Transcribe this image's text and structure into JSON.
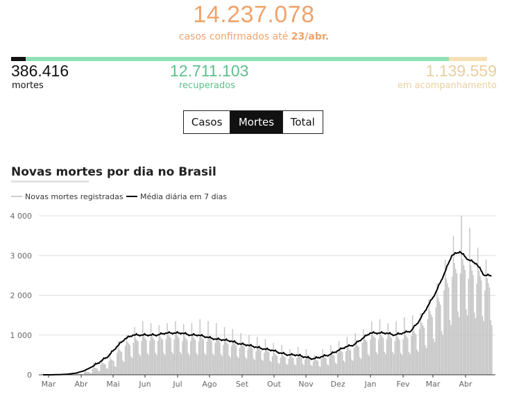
{
  "summary": {
    "confirmed": "14.237.078",
    "confirmed_caption_prefix": "casos confirmados até",
    "confirmed_caption_date": "23/abr.",
    "deaths": "386.416",
    "deaths_label": "mortes",
    "recovered": "12.711.103",
    "recovered_label": "recuperados",
    "monitoring": "1.139.559",
    "monitoring_label": "em acompanhamento"
  },
  "colors": {
    "confirmed": "#f0a36b",
    "deaths": "#111111",
    "recovered": "#5cc08b",
    "monitoring": "#e8cfa0",
    "recovered_bar": "#8ee0b4",
    "monitoring_bar": "#f7e0b5",
    "bars": "#c4c4c4",
    "line": "#000000"
  },
  "toggle": {
    "options": [
      "Casos",
      "Mortes",
      "Total"
    ],
    "selected": "Mortes"
  },
  "chart_data": {
    "type": "bar",
    "title": "Novas mortes por dia no Brasil",
    "xlabel": "",
    "ylabel": "",
    "ylim": [
      0,
      4000
    ],
    "yticks": [
      0,
      1000,
      2000,
      3000,
      4000
    ],
    "ytick_labels": [
      "0",
      "1 000",
      "2 000",
      "3 000",
      "4 000"
    ],
    "month_labels": [
      "Mar",
      "Abr",
      "Mai",
      "Jun",
      "Jul",
      "Ago",
      "Set",
      "Out",
      "Nov",
      "Dez",
      "Jan",
      "Fev",
      "Mar",
      "Abr"
    ],
    "grid": true,
    "legend_position": "top-left",
    "series": [
      {
        "name": "Novas mortes registradas",
        "type": "bar",
        "period_start": "2020-03-01",
        "period_end": "2021-04-23",
        "weekly_peak_values": [
          0,
          0,
          5,
          15,
          40,
          120,
          300,
          400,
          500,
          850,
          1000,
          1200,
          1350,
          1300,
          1250,
          1300,
          1350,
          1280,
          1300,
          1400,
          1350,
          1300,
          1200,
          1150,
          1050,
          1000,
          950,
          900,
          800,
          750,
          650,
          700,
          650,
          500,
          650,
          750,
          850,
          950,
          1050,
          1150,
          1350,
          1400,
          1300,
          1350,
          1450,
          1500,
          1550,
          1900,
          2300,
          2900,
          3500,
          4000,
          3700,
          3200,
          2900
        ],
        "values_approx_weekly": [
          0,
          0,
          2,
          8,
          25,
          80,
          180,
          300,
          400,
          650,
          850,
          950,
          1000,
          1000,
          1000,
          1050,
          1050,
          1000,
          1000,
          1000,
          980,
          950,
          880,
          850,
          800,
          750,
          700,
          650,
          550,
          500,
          480,
          500,
          450,
          400,
          480,
          550,
          650,
          700,
          800,
          950,
          1050,
          1050,
          1050,
          1000,
          1050,
          1150,
          1350,
          1650,
          2000,
          2500,
          2900,
          3000,
          2850,
          2700,
          2500
        ]
      },
      {
        "name": "Média diária em 7 dias",
        "type": "line",
        "period_start": "2020-03-01",
        "period_end": "2021-04-23",
        "weekly_values": [
          0,
          0,
          5,
          15,
          40,
          100,
          200,
          330,
          470,
          700,
          900,
          1000,
          1000,
          1000,
          1000,
          1050,
          1050,
          1050,
          1000,
          1000,
          950,
          900,
          880,
          850,
          780,
          750,
          700,
          650,
          620,
          550,
          500,
          500,
          450,
          400,
          450,
          500,
          600,
          700,
          750,
          900,
          1050,
          1050,
          1050,
          1000,
          1050,
          1100,
          1350,
          1700,
          2050,
          2500,
          3000,
          3100,
          2900,
          2800,
          2500
        ]
      }
    ]
  }
}
